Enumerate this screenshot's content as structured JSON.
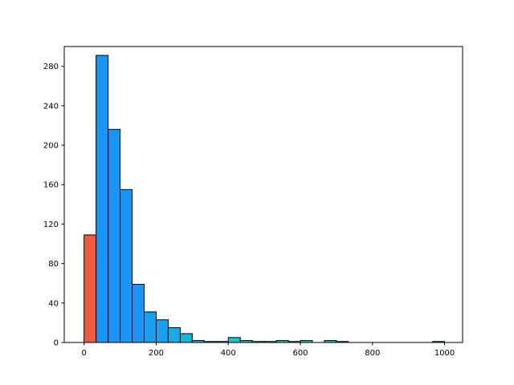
{
  "chart_data": {
    "type": "bar",
    "title": "",
    "xlabel": "",
    "ylabel": "",
    "xlim": [
      -55,
      1050
    ],
    "ylim": [
      0,
      300
    ],
    "x_ticks": [
      0,
      200,
      400,
      600,
      800,
      1000
    ],
    "y_ticks": [
      0,
      40,
      80,
      120,
      160,
      200,
      240,
      280
    ],
    "grid": false,
    "bin_edges": [
      0,
      33.3,
      66.7,
      100,
      133.3,
      166.7,
      200,
      233.3,
      266.7,
      300,
      333.3,
      366.7,
      400,
      433.3,
      466.7,
      500,
      533.3,
      566.7,
      600,
      633.3,
      666.7,
      700,
      733.3,
      766.7,
      800,
      833.3,
      866.7,
      900,
      933.3,
      966.7,
      1000
    ],
    "counts": [
      109,
      291,
      216,
      155,
      59,
      31,
      23,
      15,
      9,
      2,
      1,
      1,
      5,
      2,
      1,
      1,
      2,
      1,
      2,
      0,
      2,
      1,
      0,
      0,
      0,
      0,
      0,
      0,
      0,
      1
    ],
    "bar_colors": [
      "#f05a40",
      "#1896f5",
      "#1896f5",
      "#1896f5",
      "#1896f5",
      "#1aa0ee",
      "#1aa0ee",
      "#1aabe2",
      "#1ab4d8",
      "#1ab8d4",
      "#1ab8d4",
      "#1ab8d4",
      "#1ac4c8",
      "#1ac4c8",
      "#1ac4c8",
      "#1ac4c8",
      "#1ac4c8",
      "#1ac4c8",
      "#1ac4c8",
      "#1ac4c8",
      "#1ac4c8",
      "#1ac4c8",
      "#1ac4c8",
      "#1ac4c8",
      "#1ac4c8",
      "#1ac4c8",
      "#1ac4c8",
      "#1ac4c8",
      "#1ac4c8",
      "#1ac4c8"
    ],
    "edge_color": "#000000"
  }
}
